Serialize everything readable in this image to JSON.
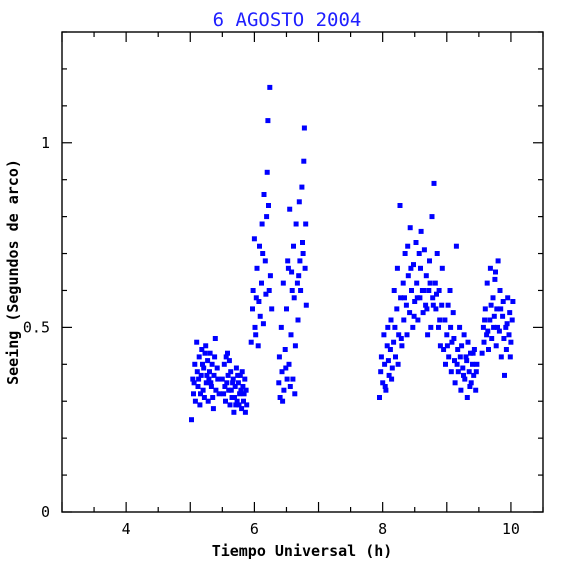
{
  "chart_data": {
    "type": "scatter",
    "title": "6 AGOSTO 2004",
    "xlabel": "Tiempo Universal (h)",
    "ylabel": "Seeing (Segundos de arco)",
    "xlim": [
      3,
      10.5
    ],
    "ylim": [
      0,
      1.3
    ],
    "x_ticks": [
      4,
      6,
      8,
      10
    ],
    "y_ticks": [
      0,
      0.5,
      1
    ],
    "x_tick_labels": [
      "4",
      "6",
      "8",
      "10"
    ],
    "y_tick_labels": [
      "0",
      "0.5",
      "1"
    ],
    "marker_color": "#0000ff",
    "points": [
      [
        5.02,
        0.25
      ],
      [
        5.04,
        0.36
      ],
      [
        5.05,
        0.32
      ],
      [
        5.07,
        0.4
      ],
      [
        5.08,
        0.3
      ],
      [
        5.1,
        0.46
      ],
      [
        5.11,
        0.38
      ],
      [
        5.12,
        0.34
      ],
      [
        5.14,
        0.42
      ],
      [
        5.15,
        0.29
      ],
      [
        5.17,
        0.37
      ],
      [
        5.18,
        0.44
      ],
      [
        5.2,
        0.33
      ],
      [
        5.21,
        0.39
      ],
      [
        5.22,
        0.31
      ],
      [
        5.24,
        0.45
      ],
      [
        5.25,
        0.35
      ],
      [
        5.27,
        0.41
      ],
      [
        5.28,
        0.3
      ],
      [
        5.3,
        0.38
      ],
      [
        5.31,
        0.43
      ],
      [
        5.33,
        0.34
      ],
      [
        5.34,
        0.4
      ],
      [
        5.36,
        0.28
      ],
      [
        5.37,
        0.37
      ],
      [
        5.39,
        0.47
      ],
      [
        5.4,
        0.33
      ],
      [
        5.42,
        0.39
      ],
      [
        5.43,
        0.36
      ],
      [
        5.45,
        0.32
      ],
      [
        5.06,
        0.35
      ],
      [
        5.13,
        0.36
      ],
      [
        5.19,
        0.4
      ],
      [
        5.26,
        0.37
      ],
      [
        5.32,
        0.35
      ],
      [
        5.38,
        0.42
      ],
      [
        5.16,
        0.32
      ],
      [
        5.23,
        0.43
      ],
      [
        5.29,
        0.36
      ],
      [
        5.35,
        0.31
      ],
      [
        5.5,
        0.36
      ],
      [
        5.52,
        0.32
      ],
      [
        5.53,
        0.4
      ],
      [
        5.55,
        0.3
      ],
      [
        5.57,
        0.35
      ],
      [
        5.58,
        0.43
      ],
      [
        5.6,
        0.33
      ],
      [
        5.62,
        0.29
      ],
      [
        5.63,
        0.38
      ],
      [
        5.65,
        0.31
      ],
      [
        5.67,
        0.36
      ],
      [
        5.68,
        0.27
      ],
      [
        5.7,
        0.34
      ],
      [
        5.72,
        0.39
      ],
      [
        5.73,
        0.3
      ],
      [
        5.75,
        0.35
      ],
      [
        5.77,
        0.32
      ],
      [
        5.78,
        0.37
      ],
      [
        5.8,
        0.28
      ],
      [
        5.82,
        0.34
      ],
      [
        5.83,
        0.3
      ],
      [
        5.85,
        0.36
      ],
      [
        5.87,
        0.33
      ],
      [
        5.88,
        0.29
      ],
      [
        5.54,
        0.34
      ],
      [
        5.59,
        0.37
      ],
      [
        5.64,
        0.33
      ],
      [
        5.69,
        0.31
      ],
      [
        5.74,
        0.37
      ],
      [
        5.79,
        0.33
      ],
      [
        5.84,
        0.32
      ],
      [
        5.61,
        0.41
      ],
      [
        5.71,
        0.29
      ],
      [
        5.81,
        0.38
      ],
      [
        5.86,
        0.27
      ],
      [
        5.56,
        0.42
      ],
      [
        5.66,
        0.35
      ],
      [
        5.76,
        0.29
      ],
      [
        5.95,
        0.46
      ],
      [
        5.97,
        0.55
      ],
      [
        5.98,
        0.6
      ],
      [
        6.0,
        0.74
      ],
      [
        6.01,
        0.5
      ],
      [
        6.03,
        0.58
      ],
      [
        6.04,
        0.66
      ],
      [
        6.06,
        0.45
      ],
      [
        6.08,
        0.72
      ],
      [
        6.09,
        0.53
      ],
      [
        6.11,
        0.62
      ],
      [
        6.12,
        0.78
      ],
      [
        6.14,
        0.51
      ],
      [
        6.15,
        0.86
      ],
      [
        6.17,
        0.68
      ],
      [
        6.18,
        0.59
      ],
      [
        6.2,
        0.92
      ],
      [
        6.21,
        1.06
      ],
      [
        6.22,
        0.83
      ],
      [
        6.24,
        1.15
      ],
      [
        6.25,
        0.64
      ],
      [
        6.27,
        0.55
      ],
      [
        6.02,
        0.48
      ],
      [
        6.07,
        0.57
      ],
      [
        6.13,
        0.7
      ],
      [
        6.19,
        0.8
      ],
      [
        6.23,
        0.6
      ],
      [
        6.38,
        0.35
      ],
      [
        6.39,
        0.42
      ],
      [
        6.4,
        0.31
      ],
      [
        6.42,
        0.5
      ],
      [
        6.43,
        0.38
      ],
      [
        6.45,
        0.62
      ],
      [
        6.46,
        0.33
      ],
      [
        6.48,
        0.44
      ],
      [
        6.5,
        0.55
      ],
      [
        6.51,
        0.36
      ],
      [
        6.52,
        0.68
      ],
      [
        6.54,
        0.4
      ],
      [
        6.55,
        0.82
      ],
      [
        6.57,
        0.48
      ],
      [
        6.58,
        0.65
      ],
      [
        6.6,
        0.36
      ],
      [
        6.61,
        0.72
      ],
      [
        6.62,
        0.58
      ],
      [
        6.64,
        0.45
      ],
      [
        6.65,
        0.78
      ],
      [
        6.67,
        0.62
      ],
      [
        6.68,
        0.52
      ],
      [
        6.7,
        0.84
      ],
      [
        6.71,
        0.68
      ],
      [
        6.72,
        0.6
      ],
      [
        6.74,
        0.88
      ],
      [
        6.75,
        0.73
      ],
      [
        6.77,
        0.95
      ],
      [
        6.78,
        1.04
      ],
      [
        6.79,
        0.66
      ],
      [
        6.8,
        0.78
      ],
      [
        6.81,
        0.56
      ],
      [
        6.44,
        0.3
      ],
      [
        6.49,
        0.39
      ],
      [
        6.56,
        0.34
      ],
      [
        6.63,
        0.32
      ],
      [
        6.69,
        0.64
      ],
      [
        6.76,
        0.7
      ],
      [
        6.59,
        0.6
      ],
      [
        6.53,
        0.66
      ],
      [
        7.95,
        0.31
      ],
      [
        7.97,
        0.38
      ],
      [
        7.98,
        0.42
      ],
      [
        8.0,
        0.35
      ],
      [
        8.02,
        0.48
      ],
      [
        8.03,
        0.4
      ],
      [
        8.05,
        0.33
      ],
      [
        8.07,
        0.45
      ],
      [
        8.08,
        0.5
      ],
      [
        8.1,
        0.37
      ],
      [
        8.12,
        0.44
      ],
      [
        8.13,
        0.52
      ],
      [
        8.15,
        0.39
      ],
      [
        8.17,
        0.46
      ],
      [
        8.18,
        0.6
      ],
      [
        8.2,
        0.42
      ],
      [
        8.22,
        0.55
      ],
      [
        8.23,
        0.66
      ],
      [
        8.25,
        0.48
      ],
      [
        8.27,
        0.83
      ],
      [
        8.28,
        0.58
      ],
      [
        8.3,
        0.45
      ],
      [
        8.32,
        0.62
      ],
      [
        8.33,
        0.52
      ],
      [
        8.35,
        0.7
      ],
      [
        8.37,
        0.56
      ],
      [
        8.38,
        0.48
      ],
      [
        8.4,
        0.64
      ],
      [
        8.42,
        0.54
      ],
      [
        8.43,
        0.77
      ],
      [
        8.45,
        0.6
      ],
      [
        8.47,
        0.5
      ],
      [
        8.48,
        0.67
      ],
      [
        8.5,
        0.57
      ],
      [
        8.52,
        0.73
      ],
      [
        8.53,
        0.62
      ],
      [
        8.55,
        0.52
      ],
      [
        8.57,
        0.7
      ],
      [
        8.58,
        0.58
      ],
      [
        8.6,
        0.76
      ],
      [
        8.62,
        0.6
      ],
      [
        8.63,
        0.54
      ],
      [
        8.65,
        0.71
      ],
      [
        8.67,
        0.56
      ],
      [
        8.68,
        0.64
      ],
      [
        8.7,
        0.48
      ],
      [
        8.72,
        0.6
      ],
      [
        8.73,
        0.68
      ],
      [
        8.75,
        0.5
      ],
      [
        8.77,
        0.8
      ],
      [
        8.78,
        0.58
      ],
      [
        8.8,
        0.89
      ],
      [
        8.82,
        0.62
      ],
      [
        8.83,
        0.55
      ],
      [
        8.85,
        0.7
      ],
      [
        8.87,
        0.5
      ],
      [
        8.88,
        0.6
      ],
      [
        8.9,
        0.45
      ],
      [
        8.92,
        0.56
      ],
      [
        8.93,
        0.66
      ],
      [
        8.04,
        0.34
      ],
      [
        8.09,
        0.41
      ],
      [
        8.14,
        0.36
      ],
      [
        8.19,
        0.5
      ],
      [
        8.24,
        0.4
      ],
      [
        8.29,
        0.47
      ],
      [
        8.34,
        0.58
      ],
      [
        8.39,
        0.72
      ],
      [
        8.44,
        0.66
      ],
      [
        8.49,
        0.53
      ],
      [
        8.54,
        0.58
      ],
      [
        8.59,
        0.66
      ],
      [
        8.64,
        0.6
      ],
      [
        8.69,
        0.55
      ],
      [
        8.74,
        0.62
      ],
      [
        8.79,
        0.56
      ],
      [
        8.84,
        0.59
      ],
      [
        8.89,
        0.52
      ],
      [
        8.95,
        0.44
      ],
      [
        8.97,
        0.52
      ],
      [
        8.98,
        0.4
      ],
      [
        9.0,
        0.48
      ],
      [
        9.02,
        0.56
      ],
      [
        9.03,
        0.42
      ],
      [
        9.05,
        0.6
      ],
      [
        9.07,
        0.38
      ],
      [
        9.08,
        0.46
      ],
      [
        9.1,
        0.54
      ],
      [
        9.12,
        0.41
      ],
      [
        9.13,
        0.35
      ],
      [
        9.15,
        0.72
      ],
      [
        9.17,
        0.44
      ],
      [
        9.18,
        0.38
      ],
      [
        9.2,
        0.5
      ],
      [
        9.22,
        0.33
      ],
      [
        9.23,
        0.45
      ],
      [
        9.25,
        0.39
      ],
      [
        9.27,
        0.48
      ],
      [
        9.28,
        0.36
      ],
      [
        9.3,
        0.42
      ],
      [
        9.32,
        0.31
      ],
      [
        9.33,
        0.46
      ],
      [
        9.35,
        0.38
      ],
      [
        9.37,
        0.43
      ],
      [
        9.38,
        0.35
      ],
      [
        9.4,
        0.4
      ],
      [
        9.42,
        0.37
      ],
      [
        9.43,
        0.44
      ],
      [
        9.45,
        0.33
      ],
      [
        9.47,
        0.4
      ],
      [
        9.01,
        0.45
      ],
      [
        9.06,
        0.5
      ],
      [
        9.11,
        0.47
      ],
      [
        9.16,
        0.4
      ],
      [
        9.21,
        0.42
      ],
      [
        9.26,
        0.37
      ],
      [
        9.31,
        0.41
      ],
      [
        9.36,
        0.34
      ],
      [
        9.41,
        0.43
      ],
      [
        9.46,
        0.38
      ],
      [
        9.55,
        0.43
      ],
      [
        9.57,
        0.5
      ],
      [
        9.58,
        0.46
      ],
      [
        9.6,
        0.55
      ],
      [
        9.62,
        0.48
      ],
      [
        9.63,
        0.62
      ],
      [
        9.65,
        0.44
      ],
      [
        9.67,
        0.52
      ],
      [
        9.68,
        0.66
      ],
      [
        9.7,
        0.47
      ],
      [
        9.72,
        0.58
      ],
      [
        9.73,
        0.5
      ],
      [
        9.75,
        0.63
      ],
      [
        9.77,
        0.45
      ],
      [
        9.78,
        0.55
      ],
      [
        9.8,
        0.68
      ],
      [
        9.82,
        0.49
      ],
      [
        9.83,
        0.6
      ],
      [
        9.85,
        0.42
      ],
      [
        9.87,
        0.53
      ],
      [
        9.88,
        0.57
      ],
      [
        9.9,
        0.37
      ],
      [
        9.92,
        0.5
      ],
      [
        9.93,
        0.44
      ],
      [
        9.95,
        0.58
      ],
      [
        9.97,
        0.48
      ],
      [
        9.98,
        0.54
      ],
      [
        10.0,
        0.46
      ],
      [
        10.02,
        0.52
      ],
      [
        10.03,
        0.57
      ],
      [
        9.59,
        0.52
      ],
      [
        9.64,
        0.49
      ],
      [
        9.69,
        0.56
      ],
      [
        9.74,
        0.53
      ],
      [
        9.79,
        0.5
      ],
      [
        9.84,
        0.55
      ],
      [
        9.89,
        0.47
      ],
      [
        9.94,
        0.51
      ],
      [
        9.99,
        0.42
      ],
      [
        9.76,
        0.65
      ]
    ]
  }
}
